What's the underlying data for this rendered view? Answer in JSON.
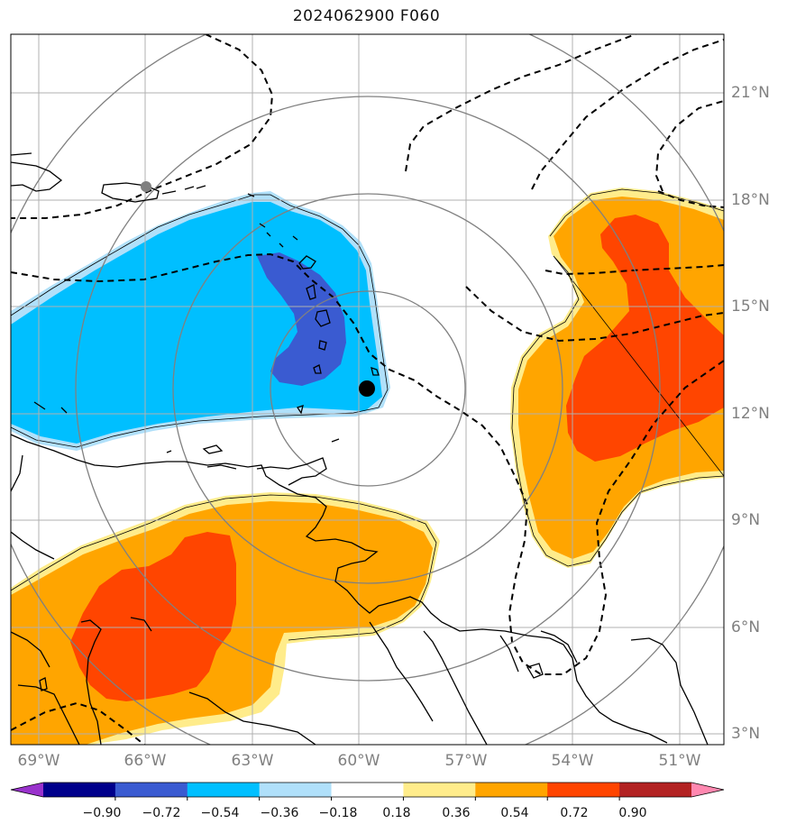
{
  "title": "2024062900 F060",
  "map": {
    "projection": "lat-lon",
    "lon_range": [
      -69.8,
      -49.6
    ],
    "lat_range": [
      2.8,
      22.6
    ],
    "graticule": true,
    "lon_ticks": [
      {
        "value": -69,
        "label": "69°W"
      },
      {
        "value": -66,
        "label": "66°W"
      },
      {
        "value": -63,
        "label": "63°W"
      },
      {
        "value": -60,
        "label": "60°W"
      },
      {
        "value": -57,
        "label": "57°W"
      },
      {
        "value": -54,
        "label": "54°W"
      },
      {
        "value": -51,
        "label": "51°W"
      }
    ],
    "lat_ticks": [
      {
        "value": 21,
        "label": "21°N"
      },
      {
        "value": 18,
        "label": "18°N"
      },
      {
        "value": 15,
        "label": "15°N"
      },
      {
        "value": 12,
        "label": "12°N"
      },
      {
        "value": 9,
        "label": "9°N"
      },
      {
        "value": 6,
        "label": "6°N"
      },
      {
        "value": 3,
        "label": "3°N"
      }
    ],
    "storm_center": {
      "lon": -59.9,
      "lat": 12.7,
      "symbol": "black-dot"
    },
    "reference_point": {
      "lon": -66.0,
      "lat": 18.4,
      "symbol": "gray-dot"
    },
    "range_rings_deg": [
      2.7,
      5.4,
      8.1,
      10.8
    ],
    "range_ring_color": "#808080",
    "contour_style": "black-dashed",
    "coastline_color": "#000000"
  },
  "colorbar": {
    "extend": "both",
    "levels": [
      "−0.90",
      "−0.72",
      "−0.54",
      "−0.36",
      "−0.18",
      "0.18",
      "0.36",
      "0.54",
      "0.72",
      "0.90"
    ],
    "colors": [
      "#9932cc",
      "#00008b",
      "#3a5bd1",
      "#00bfff",
      "#b0e0fa",
      "#ffffff",
      "#ffec8b",
      "#ffa500",
      "#ff4500",
      "#b22222",
      "#ff88b0"
    ]
  },
  "fill_colors": {
    "neg_light": "#b0e0fa",
    "neg_mid": "#00bfff",
    "neg_strong": "#3a5bd1",
    "pos_light": "#ffec8b",
    "pos_mid": "#ffa500",
    "pos_strong": "#ff4500"
  }
}
